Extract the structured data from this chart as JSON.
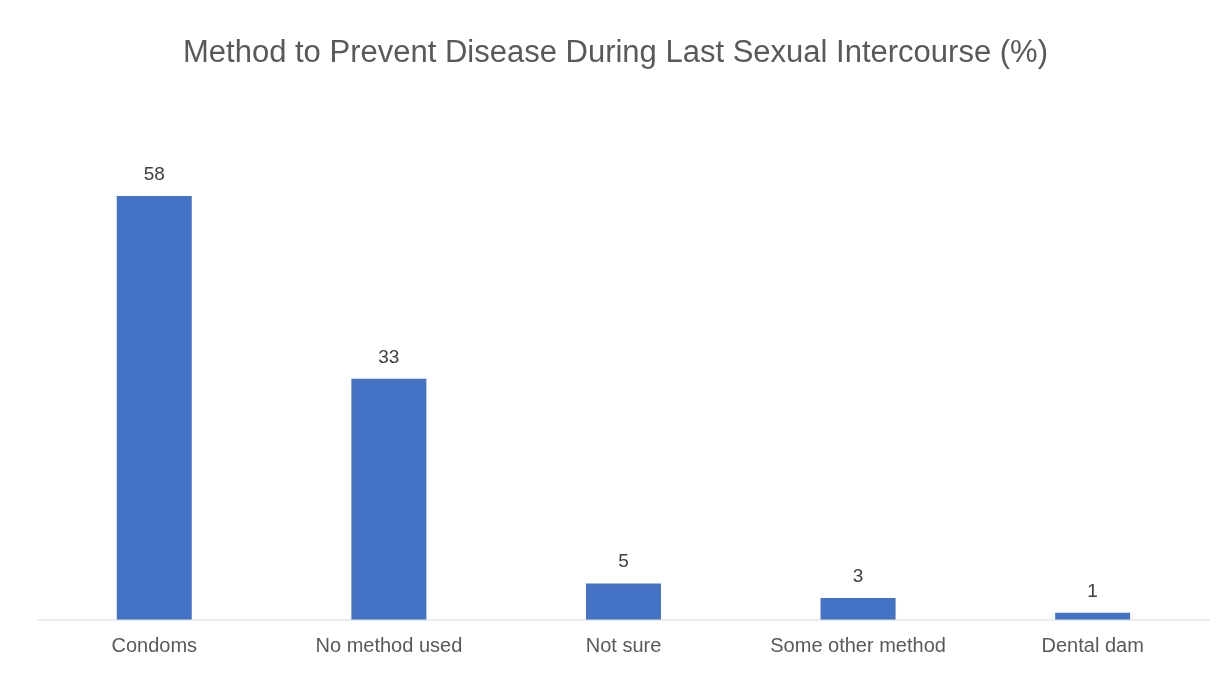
{
  "chart_data": {
    "type": "bar",
    "title": "Method to Prevent Disease During Last Sexual Intercourse (%)",
    "categories": [
      "Condoms",
      "No method used",
      "Not sure",
      "Some other method",
      "Dental dam"
    ],
    "values": [
      58,
      33,
      5,
      3,
      1
    ],
    "color": "#4472c4",
    "data_labels": true
  }
}
